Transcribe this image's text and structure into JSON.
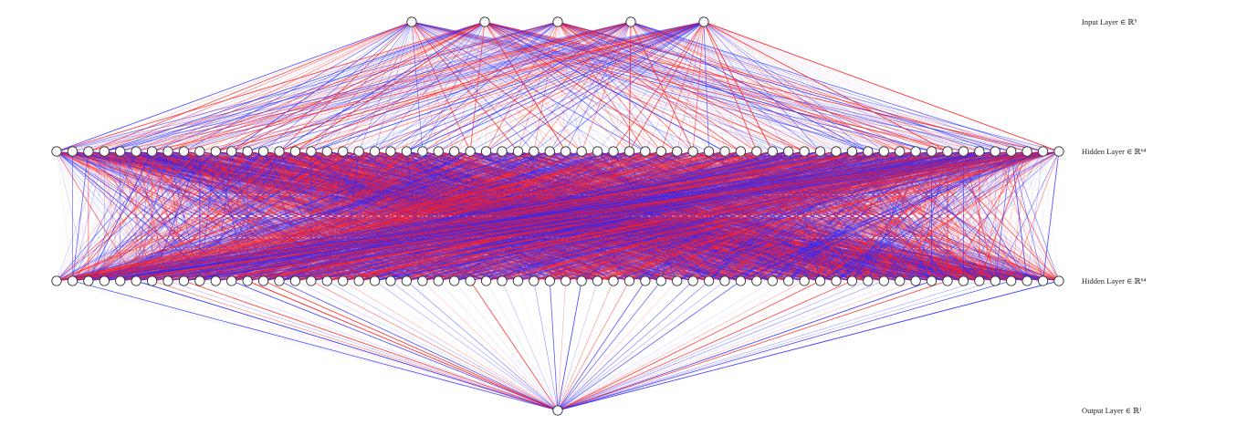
{
  "diagram": {
    "type": "neural-network",
    "colors": {
      "positive_edge": "#ff2020",
      "negative_edge": "#2a2aff",
      "node_fill": "#ffffff",
      "node_stroke": "#333333",
      "background": "#ffffff"
    },
    "layers": [
      {
        "name": "Input Layer",
        "label": "Input Layer ∈ ℝ⁵",
        "size": 5
      },
      {
        "name": "Hidden Layer",
        "label": "Hidden Layer ∈ ℝ⁶⁴",
        "size": 64
      },
      {
        "name": "Hidden Layer",
        "label": "Hidden Layer ∈ ℝ⁶⁴",
        "size": 64
      },
      {
        "name": "Output Layer",
        "label": "Output Layer ∈ ℝ¹",
        "size": 1
      }
    ]
  }
}
